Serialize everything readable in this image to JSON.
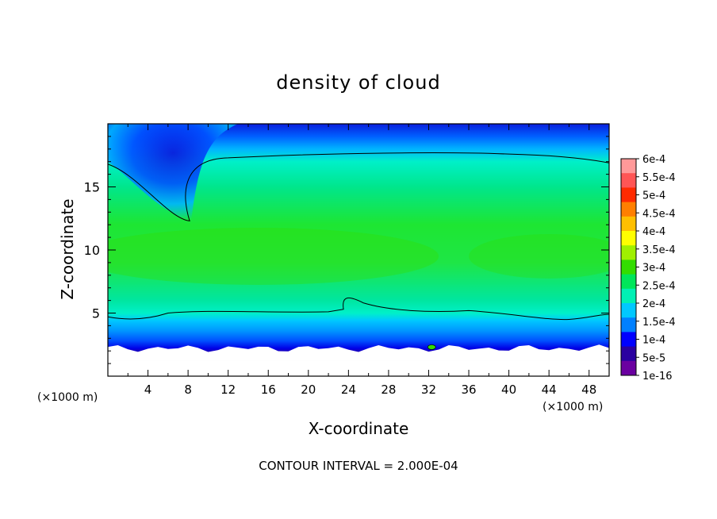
{
  "chart_data": {
    "type": "heatmap",
    "title": "density of cloud",
    "xlabel": "X-coordinate",
    "ylabel": "Z-coordinate",
    "x_unit": "(×1000 m)",
    "y_unit": "(×1000 m)",
    "xlim": [
      0,
      50
    ],
    "ylim": [
      0,
      20
    ],
    "x_ticks": [
      4,
      8,
      12,
      16,
      20,
      24,
      28,
      32,
      36,
      40,
      44,
      48
    ],
    "y_ticks": [
      5,
      10,
      15
    ],
    "footer": "CONTOUR INTERVAL = 2.000E-04",
    "contour_interval": 0.0002,
    "colorbar": {
      "labels": [
        "6e-4",
        "5.5e-4",
        "5e-4",
        "4.5e-4",
        "4e-4",
        "3.5e-4",
        "3e-4",
        "2.5e-4",
        "2e-4",
        "1.5e-4",
        "1e-4",
        "5e-5",
        "1e-16"
      ],
      "colors": [
        "#ff9999",
        "#ff5555",
        "#ff2a00",
        "#ff7f00",
        "#ffbf00",
        "#ffff00",
        "#a0f000",
        "#33dd00",
        "#00e65a",
        "#00f0b4",
        "#00c8ff",
        "#0080ff",
        "#0000ff",
        "#2a00a0",
        "#6a00a0"
      ]
    },
    "regions": {
      "cloud_base_km": 2.5,
      "cloud_top_km": 17.7,
      "max_density_level_km": 9.5,
      "dry_intrusion_peak_x_km": 8,
      "dry_intrusion_bottom_km": 12.3
    }
  }
}
